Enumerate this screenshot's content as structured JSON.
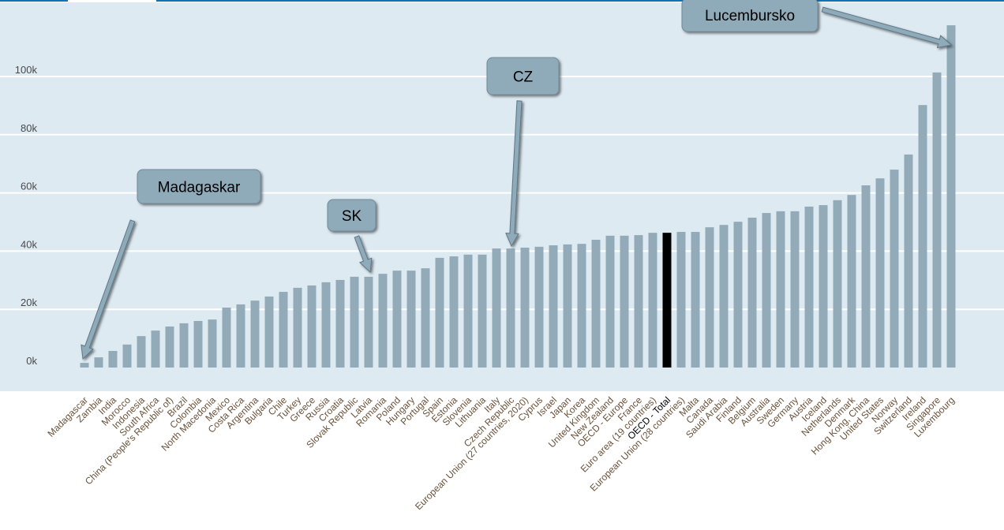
{
  "chart_data": {
    "type": "bar",
    "title": "",
    "xlabel": "",
    "ylabel": "",
    "ylim": [
      -8,
      118
    ],
    "yticks": [
      0,
      20,
      40,
      60,
      80,
      100
    ],
    "ytick_labels": [
      "0k",
      "20k",
      "40k",
      "60k",
      "80k",
      "100k"
    ],
    "grid": true,
    "categories": [
      "Madagascar",
      "Zambia",
      "India",
      "Morocco",
      "Indonesia",
      "South Africa",
      "China (People's Republic of)",
      "Brazil",
      "Colombia",
      "North Macedonia",
      "Mexico",
      "Costa Rica",
      "Argentina",
      "Bulgaria",
      "Chile",
      "Turkey",
      "Greece",
      "Russia",
      "Croatia",
      "Slovak Republic",
      "Latvia",
      "Romania",
      "Poland",
      "Hungary",
      "Portugal",
      "Spain",
      "Estonia",
      "Slovenia",
      "Lithuania",
      "Italy",
      "Czech Republic",
      "European Union (27 countries, 2020)",
      "Cyprus",
      "Israel",
      "Japan",
      "Korea",
      "United Kingdom",
      "New Zealand",
      "OECD - Europe",
      "France",
      "Euro area (19 countries)",
      "OECD - Total",
      "European Union (28 countries)",
      "Malta",
      "Canada",
      "Saudi Arabia",
      "Finland",
      "Belgium",
      "Australia",
      "Sweden",
      "Germany",
      "Austria",
      "Iceland",
      "Netherlands",
      "Denmark",
      "Hong Kong, China",
      "United States",
      "Norway",
      "Switzerland",
      "Ireland",
      "Singapore",
      "Luxembourg"
    ],
    "values": [
      1.6,
      3.5,
      5.7,
      7.9,
      10.8,
      12.7,
      14.1,
      15.2,
      16.0,
      16.5,
      20.6,
      21.7,
      23.0,
      24.4,
      26.0,
      27.4,
      28.2,
      29.3,
      30.1,
      31.2,
      31.2,
      32.2,
      33.3,
      33.3,
      34.1,
      37.7,
      38.2,
      38.8,
      38.8,
      40.9,
      40.9,
      41.2,
      41.5,
      42.0,
      42.3,
      42.5,
      43.9,
      45.3,
      45.3,
      45.5,
      46.3,
      46.3,
      46.6,
      46.6,
      48.2,
      49.0,
      50.1,
      51.5,
      53.1,
      53.7,
      53.7,
      55.3,
      55.8,
      57.5,
      59.3,
      62.6,
      65.0,
      68.0,
      73.2,
      90.2,
      101.4,
      117.6
    ],
    "value_unit": "k",
    "highlight_category": "OECD - Total",
    "colors": {
      "bar": "#93abb9",
      "highlight": "#000000",
      "plot_bg": "#deeaf2",
      "label": "#6b5138",
      "callout": "#8faab8"
    },
    "annotations": [
      {
        "text": "Madagaskar",
        "target": "Madagascar"
      },
      {
        "text": "SK",
        "target": "Slovak Republic"
      },
      {
        "text": "CZ",
        "target": "Czech Republic"
      },
      {
        "text": "Lucembursko",
        "target": "Luxembourg"
      }
    ]
  }
}
